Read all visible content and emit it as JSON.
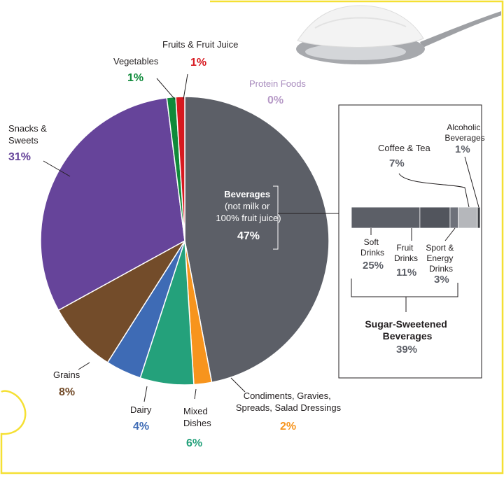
{
  "colors": {
    "border_yellow": "#f5e034",
    "beverages": "#5c5f67",
    "snacks": "#66449a",
    "grains": "#734c2a",
    "dairy": "#3e6bb5",
    "mixed": "#24a17b",
    "condiments": "#f7941d",
    "vegetables": "#0f8a3a",
    "fruits": "#d71920",
    "protein": "#b79ac7"
  },
  "chart_data": {
    "type": "pie",
    "unit": "%",
    "slices": [
      {
        "key": "beverages",
        "label": "Beverages (not milk or 100% fruit juice)",
        "label_lines": [
          "Beverages",
          "(not milk or",
          "100% fruit juice)"
        ],
        "value": 47,
        "display": "47%",
        "color": "#5c5f67"
      },
      {
        "key": "condiments",
        "label": "Condiments, Gravies, Spreads, Salad Dressings",
        "label_lines": [
          "Condiments, Gravies,",
          "Spreads, Salad Dressings"
        ],
        "value": 2,
        "display": "2%",
        "color": "#f7941d"
      },
      {
        "key": "mixed",
        "label": "Mixed Dishes",
        "label_lines": [
          "Mixed",
          "Dishes"
        ],
        "value": 6,
        "display": "6%",
        "color": "#24a17b"
      },
      {
        "key": "dairy",
        "label": "Dairy",
        "label_lines": [
          "Dairy"
        ],
        "value": 4,
        "display": "4%",
        "color": "#3e6bb5"
      },
      {
        "key": "grains",
        "label": "Grains",
        "label_lines": [
          "Grains"
        ],
        "value": 8,
        "display": "8%",
        "color": "#734c2a"
      },
      {
        "key": "snacks",
        "label": "Snacks & Sweets",
        "label_lines": [
          "Snacks &",
          "Sweets"
        ],
        "value": 31,
        "display": "31%",
        "color": "#66449a"
      },
      {
        "key": "vegetables",
        "label": "Vegetables",
        "label_lines": [
          "Vegetables"
        ],
        "value": 1,
        "display": "1%",
        "color": "#0f8a3a"
      },
      {
        "key": "fruits",
        "label": "Fruits & Fruit Juice",
        "label_lines": [
          "Fruits & Fruit Juice"
        ],
        "value": 1,
        "display": "1%",
        "color": "#d71920"
      },
      {
        "key": "protein",
        "label": "Protein Foods",
        "label_lines": [
          "Protein Foods"
        ],
        "value": 0,
        "display": "0%",
        "color": "#b79ac7"
      }
    ],
    "breakdown": {
      "type": "stacked-bar",
      "parent": "Beverages",
      "segments": [
        {
          "key": "soft",
          "label": "Soft Drinks",
          "label_lines": [
            "Soft",
            "Drinks"
          ],
          "value": 25,
          "display": "25%",
          "color": "#5c5f67"
        },
        {
          "key": "fruitdrinks",
          "label": "Fruit Drinks",
          "label_lines": [
            "Fruit",
            "Drinks"
          ],
          "value": 11,
          "display": "11%",
          "color": "#52555d"
        },
        {
          "key": "sport",
          "label": "Sport & Energy Drinks",
          "label_lines": [
            "Sport &",
            "Energy",
            "Drinks"
          ],
          "value": 3,
          "display": "3%",
          "color": "#6e717a"
        },
        {
          "key": "coffee",
          "label": "Coffee & Tea",
          "label_lines": [
            "Coffee & Tea"
          ],
          "value": 7,
          "display": "7%",
          "color": "#b5b7bb"
        },
        {
          "key": "alcohol",
          "label": "Alcoholic Beverages",
          "label_lines": [
            "Alcoholic",
            "Beverages"
          ],
          "value": 1,
          "display": "1%",
          "color": "#3b3d42"
        }
      ],
      "group": {
        "label_lines": [
          "Sugar-Sweetened",
          "Beverages"
        ],
        "value": 39,
        "display": "39%"
      }
    }
  }
}
